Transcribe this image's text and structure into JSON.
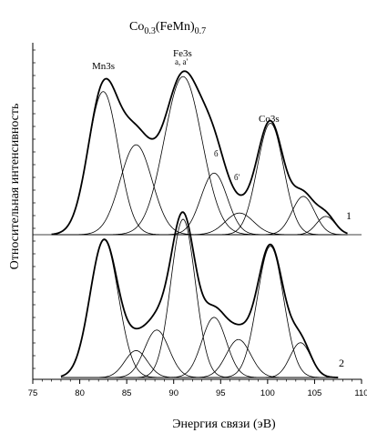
{
  "chart_data": {
    "type": "line",
    "title_base": "Co",
    "title_sub1": "0.3",
    "title_mid": "(FeMn)",
    "title_sub2": "0.7",
    "xlabel": "Энергия связи (эВ)",
    "ylabel": "Относительная интенсивность",
    "xlim": [
      75,
      110
    ],
    "xticks": [
      75,
      80,
      85,
      90,
      95,
      100,
      105,
      110
    ],
    "xtick_labels": [
      "75",
      "80",
      "85",
      "90",
      "95",
      "100",
      "105",
      "110"
    ],
    "peak_labels": {
      "mn3s": "Mn3s",
      "fe3s": "Fe3s",
      "fe3s_sub": "a, a'",
      "co3s": "Co3s",
      "b": "б",
      "b_prime": "б'"
    },
    "spectra": [
      {
        "label": "1",
        "x_range": [
          77,
          108.5
        ],
        "components": [
          {
            "center": 82.5,
            "height": 0.86,
            "sigma": 1.6
          },
          {
            "center": 86.0,
            "height": 0.54,
            "sigma": 1.7
          },
          {
            "center": 91.0,
            "height": 0.95,
            "sigma": 2.0
          },
          {
            "center": 94.3,
            "height": 0.37,
            "sigma": 1.4
          },
          {
            "center": 97.0,
            "height": 0.13,
            "sigma": 1.5
          },
          {
            "center": 100.3,
            "height": 0.67,
            "sigma": 1.4
          },
          {
            "center": 103.8,
            "height": 0.23,
            "sigma": 1.2
          },
          {
            "center": 106.2,
            "height": 0.11,
            "sigma": 1.0
          }
        ]
      },
      {
        "label": "2",
        "x_range": [
          78,
          107.5
        ],
        "components": [
          {
            "center": 82.6,
            "height": 0.87,
            "sigma": 1.5
          },
          {
            "center": 86.0,
            "height": 0.17,
            "sigma": 1.2
          },
          {
            "center": 88.2,
            "height": 0.3,
            "sigma": 1.3
          },
          {
            "center": 91.0,
            "height": 1.0,
            "sigma": 1.3
          },
          {
            "center": 94.3,
            "height": 0.38,
            "sigma": 1.3
          },
          {
            "center": 96.9,
            "height": 0.24,
            "sigma": 1.3
          },
          {
            "center": 100.3,
            "height": 0.83,
            "sigma": 1.4
          },
          {
            "center": 103.5,
            "height": 0.22,
            "sigma": 1.1
          }
        ]
      }
    ]
  }
}
